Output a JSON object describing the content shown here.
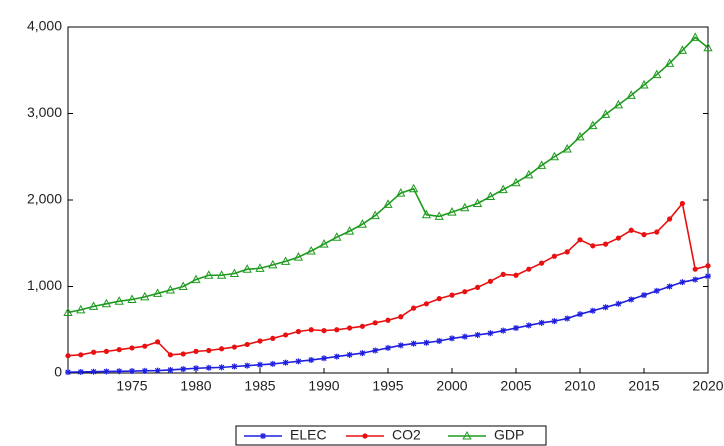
{
  "chart_data": {
    "type": "line",
    "x": [
      1970,
      1971,
      1972,
      1973,
      1974,
      1975,
      1976,
      1977,
      1978,
      1979,
      1980,
      1981,
      1982,
      1983,
      1984,
      1985,
      1986,
      1987,
      1988,
      1989,
      1990,
      1991,
      1992,
      1993,
      1994,
      1995,
      1996,
      1997,
      1998,
      1999,
      2000,
      2001,
      2002,
      2003,
      2004,
      2005,
      2006,
      2007,
      2008,
      2009,
      2010,
      2011,
      2012,
      2013,
      2014,
      2015,
      2016,
      2017,
      2018,
      2019,
      2020
    ],
    "series": [
      {
        "name": "ELEC",
        "color": "#1f1fe0",
        "marker": "asterisk",
        "values": [
          10,
          12,
          15,
          18,
          20,
          22,
          25,
          28,
          35,
          45,
          55,
          60,
          65,
          75,
          85,
          95,
          105,
          120,
          135,
          150,
          170,
          190,
          210,
          230,
          260,
          290,
          320,
          340,
          350,
          370,
          400,
          420,
          440,
          460,
          490,
          520,
          550,
          580,
          600,
          630,
          680,
          720,
          760,
          800,
          850,
          900,
          950,
          1000,
          1050,
          1080,
          1120
        ]
      },
      {
        "name": "CO2",
        "color": "#e81010",
        "marker": "dot",
        "values": [
          200,
          210,
          240,
          250,
          270,
          290,
          310,
          360,
          210,
          220,
          250,
          260,
          280,
          300,
          330,
          370,
          400,
          440,
          480,
          500,
          490,
          500,
          520,
          540,
          580,
          610,
          650,
          750,
          800,
          860,
          900,
          940,
          990,
          1060,
          1140,
          1130,
          1200,
          1270,
          1350,
          1400,
          1540,
          1470,
          1490,
          1560,
          1650,
          1600,
          1630,
          1780,
          1960,
          1200,
          1240
        ]
      },
      {
        "name": "GDP",
        "color": "#1e9a1e",
        "marker": "triangle",
        "values": [
          700,
          730,
          770,
          800,
          830,
          850,
          880,
          920,
          960,
          1000,
          1080,
          1130,
          1130,
          1150,
          1200,
          1210,
          1250,
          1290,
          1340,
          1410,
          1490,
          1570,
          1640,
          1720,
          1820,
          1950,
          2080,
          2130,
          1830,
          1810,
          1860,
          1910,
          1960,
          2040,
          2120,
          2200,
          2290,
          2400,
          2500,
          2590,
          2730,
          2860,
          2990,
          3100,
          3210,
          3330,
          3450,
          3580,
          3730,
          3880,
          3760
        ]
      }
    ],
    "xlim": [
      1970,
      2020
    ],
    "xticks": [
      1975,
      1980,
      1985,
      1990,
      1995,
      2000,
      2005,
      2010,
      2015,
      2020
    ],
    "ylim": [
      0,
      4000
    ],
    "yticks": [
      0,
      {
        "value": 1000,
        "label": "1,000"
      },
      {
        "value": 2000,
        "label": "2,000"
      },
      {
        "value": 3000,
        "label": "3,000"
      },
      {
        "value": 4000,
        "label": "4,000"
      }
    ],
    "grid": false,
    "legend": "bottom"
  }
}
